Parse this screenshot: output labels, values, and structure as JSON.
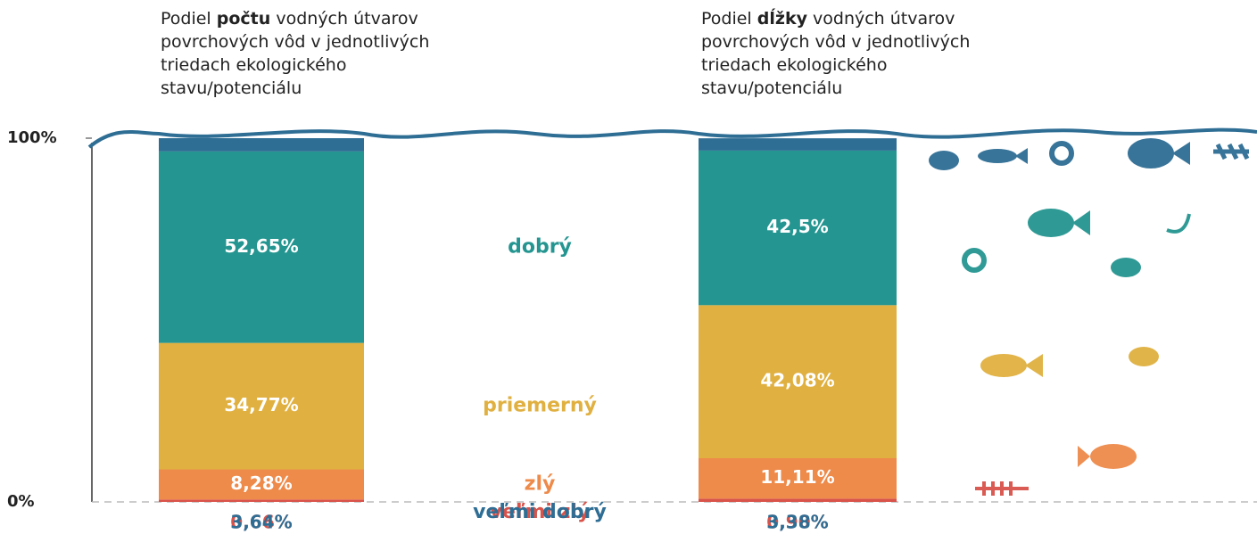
{
  "chart_data": {
    "type": "bar",
    "stacked": true,
    "bar_titles": [
      {
        "pre": "Podiel",
        "bold": "počtu",
        "post": "vodných útvarov povrchových vôd v jednotlivých triedach ekologického stavu/potenciálu"
      },
      {
        "pre": "Podiel",
        "bold": "dĺžky",
        "post": "vodných útvarov povrchových vôd v jednotlivých triedach ekologického stavu/potenciálu"
      }
    ],
    "ylim": [
      0,
      100
    ],
    "yticks": [
      {
        "value": 0,
        "label": "0%"
      },
      {
        "value": 100,
        "label": "100%"
      }
    ],
    "series": [
      {
        "name": "veľmi zlý",
        "color": "#d9534a",
        "values": [
          0.66,
          0.9
        ],
        "value_labels": [
          "0,66%",
          "0,90%"
        ]
      },
      {
        "name": "zlý",
        "color": "#ee8a4a",
        "values": [
          8.28,
          11.11
        ],
        "value_labels": [
          "8,28%",
          "11,11%"
        ]
      },
      {
        "name": "priemerný",
        "color": "#e0b040",
        "values": [
          34.77,
          42.08
        ],
        "value_labels": [
          "34,77%",
          "42,08%"
        ]
      },
      {
        "name": "dobrý",
        "color": "#249590",
        "values": [
          52.65,
          42.5
        ],
        "value_labels": [
          "52,65%",
          "42,5%"
        ]
      },
      {
        "name": "veľmi dobrý",
        "color": "#2e6d94",
        "values": [
          3.64,
          3.38
        ],
        "value_labels": [
          "3,64%",
          "3,38%"
        ]
      }
    ]
  }
}
